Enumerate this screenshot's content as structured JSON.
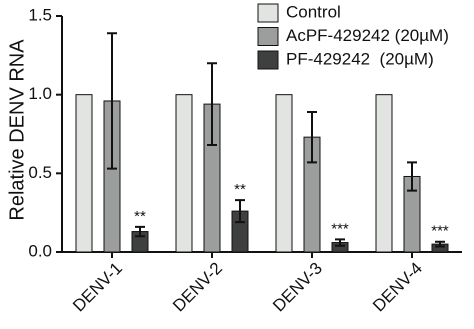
{
  "chart_data": {
    "type": "bar",
    "y_label": "Relative DENV RNA",
    "categories": [
      "DENV-1",
      "DENV-2",
      "DENV-3",
      "DENV-4"
    ],
    "series": [
      {
        "name": "Control",
        "color": "#e2e4e2",
        "values": [
          1,
          1,
          1,
          1
        ]
      },
      {
        "name": "AcPF-429242 (20µM)",
        "color": "#9b9e9c",
        "values": [
          0.96,
          0.94,
          0.73,
          0.48
        ],
        "errors": [
          0.43,
          0.26,
          0.16,
          0.09
        ]
      },
      {
        "name": "PF-429242  (20µM)",
        "color": "#3e403f",
        "values": [
          0.13,
          0.26,
          0.06,
          0.05
        ],
        "errors": [
          0.03,
          0.07,
          0.02,
          0.015
        ]
      }
    ],
    "annotations": [
      "**",
      "**",
      "***",
      "***"
    ],
    "ylim": [
      0,
      1.5
    ],
    "yticks": [
      {
        "value": 0,
        "label": "0.0"
      },
      {
        "value": 0.5,
        "label": "0.5"
      },
      {
        "value": 1,
        "label": "1.0"
      },
      {
        "value": 1.5,
        "label": "1.5"
      }
    ],
    "legend": "top-right"
  }
}
